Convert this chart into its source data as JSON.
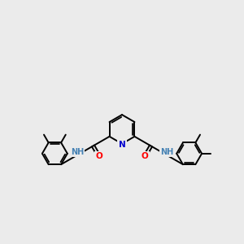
{
  "bg_color": "#ebebeb",
  "bond_color": "#000000",
  "N_color": "#0000cd",
  "O_color": "#ff0000",
  "NH_color": "#4682b4",
  "line_width": 1.4,
  "figsize": [
    3.0,
    3.0
  ],
  "dpi": 100,
  "xlim": [
    0,
    10
  ],
  "ylim": [
    2.5,
    8.5
  ]
}
